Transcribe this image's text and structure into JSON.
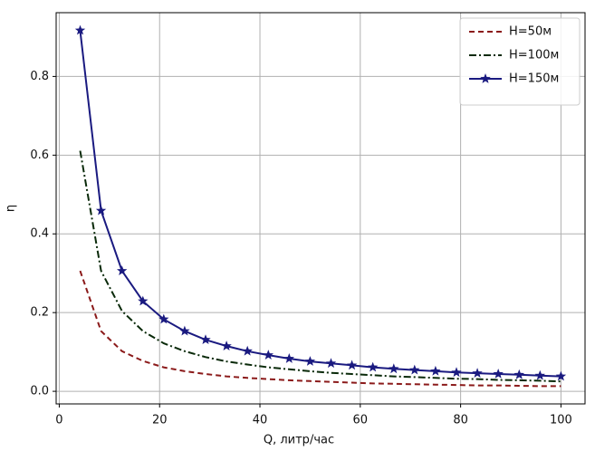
{
  "chart_data": {
    "type": "line",
    "xlabel": "Q, литр/час",
    "ylabel": "η",
    "x": [
      4.17,
      8.33,
      12.5,
      16.67,
      20.83,
      25,
      29.17,
      33.33,
      37.5,
      41.67,
      45.83,
      50,
      54.17,
      58.33,
      62.5,
      66.67,
      70.83,
      75,
      79.17,
      83.33,
      87.5,
      91.67,
      95.83,
      100
    ],
    "series": [
      {
        "name": "H=50м",
        "color": "#8b1a1a",
        "linestyle": "dashed",
        "values": [
          0.306,
          0.153,
          0.102,
          0.077,
          0.061,
          0.051,
          0.044,
          0.038,
          0.034,
          0.031,
          0.028,
          0.026,
          0.024,
          0.022,
          0.02,
          0.019,
          0.018,
          0.017,
          0.016,
          0.015,
          0.015,
          0.014,
          0.013,
          0.013
        ]
      },
      {
        "name": "H=100м",
        "color": "#0a2a0a",
        "linestyle": "dashdot",
        "values": [
          0.611,
          0.306,
          0.204,
          0.153,
          0.122,
          0.102,
          0.087,
          0.076,
          0.068,
          0.061,
          0.056,
          0.051,
          0.047,
          0.044,
          0.041,
          0.038,
          0.036,
          0.034,
          0.032,
          0.031,
          0.029,
          0.028,
          0.027,
          0.025
        ]
      },
      {
        "name": "H=150м",
        "color": "#1a1a80",
        "linestyle": "solid",
        "marker": "star",
        "values": [
          0.917,
          0.459,
          0.306,
          0.229,
          0.183,
          0.153,
          0.131,
          0.115,
          0.102,
          0.092,
          0.083,
          0.076,
          0.071,
          0.066,
          0.061,
          0.057,
          0.054,
          0.051,
          0.048,
          0.046,
          0.044,
          0.042,
          0.04,
          0.038
        ]
      }
    ],
    "xlim": [
      -0.62,
      104.8
    ],
    "ylim": [
      -0.032,
      0.962
    ],
    "xticks": [
      0,
      20,
      40,
      60,
      80,
      100
    ],
    "yticks": [
      {
        "value": 0,
        "label": "0.0"
      },
      0.2,
      0.4,
      0.6,
      0.8
    ],
    "grid": true,
    "legend": "upper right"
  }
}
